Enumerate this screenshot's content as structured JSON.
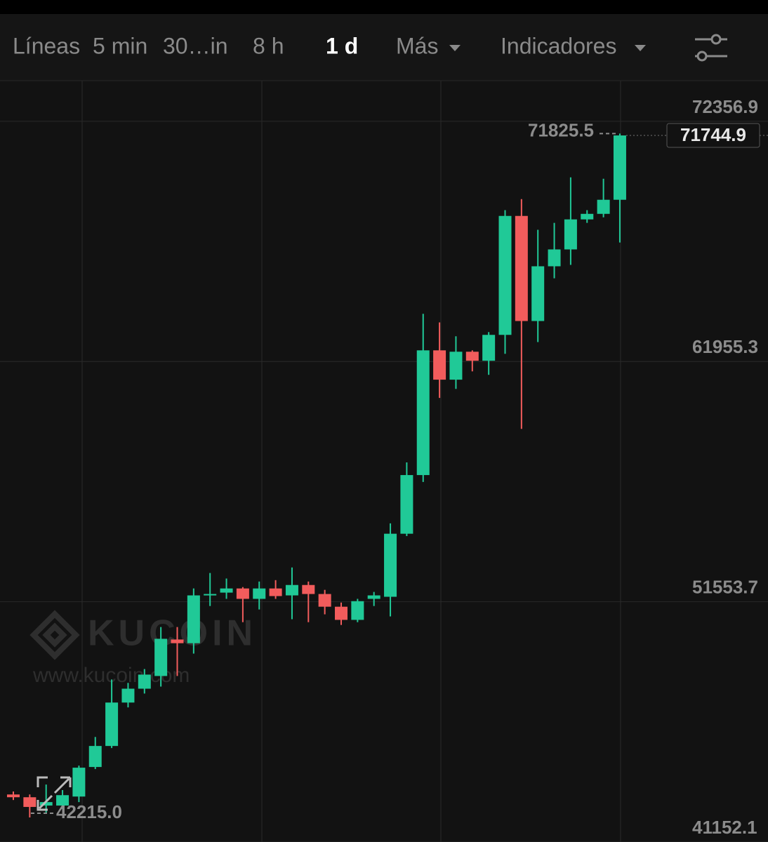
{
  "toolbar": {
    "tabs": [
      "Líneas",
      "5 min",
      "30…in",
      "8 h",
      "1 d",
      "Más",
      "Indicadores"
    ],
    "active": 4
  },
  "watermark": {
    "brand": "KUCOIN",
    "url": "www.kucoin.com"
  },
  "chart_data": {
    "type": "candlestick",
    "up_color": "#20c997",
    "down_color": "#f25c5c",
    "open": [
      43210,
      43090,
      42730,
      42730,
      43120,
      44400,
      45310,
      47190,
      47790,
      48340,
      49920,
      49760,
      51830,
      51950,
      52130,
      51680,
      52130,
      51830,
      52280,
      51890,
      51340,
      50770,
      51680,
      51770,
      54500,
      57040,
      62440,
      61170,
      62380,
      61990,
      63110,
      68260,
      63710,
      66080,
      66810,
      68110,
      68350,
      68960
    ],
    "high": [
      43340,
      43210,
      43640,
      43400,
      44460,
      45700,
      48190,
      48040,
      48640,
      50460,
      50460,
      52130,
      52800,
      52560,
      52190,
      52430,
      52490,
      53040,
      52430,
      52070,
      51520,
      51680,
      51980,
      54950,
      57590,
      64020,
      63650,
      63050,
      62440,
      63230,
      68510,
      68990,
      67660,
      67960,
      69930,
      68510,
      69870,
      71825.5
    ],
    "low": [
      42970,
      42215.0,
      42430,
      42580,
      42880,
      44310,
      45220,
      46980,
      47580,
      47880,
      48340,
      49310,
      51370,
      51680,
      50670,
      51220,
      51680,
      50800,
      50670,
      51010,
      50550,
      50670,
      51370,
      50920,
      54400,
      56740,
      60380,
      60770,
      61530,
      61380,
      62290,
      59040,
      62800,
      65560,
      66140,
      67960,
      68200,
      67110
    ],
    "close": [
      43090,
      42670,
      42880,
      43180,
      44370,
      45310,
      47190,
      47790,
      48400,
      49950,
      49760,
      51830,
      51890,
      52130,
      51680,
      52130,
      51800,
      52280,
      51890,
      51340,
      50770,
      51580,
      51830,
      54500,
      57040,
      62440,
      61170,
      62380,
      61990,
      63110,
      68260,
      63710,
      66080,
      66810,
      68110,
      68350,
      68960,
      71744.9
    ],
    "ylim": [
      41152.1,
      74115.7
    ],
    "yticks": [
      72356.9,
      61955.3,
      51553.7,
      41152.1
    ],
    "grid": true,
    "max_label": 71825.5,
    "min_label": {
      "value": 42215.0,
      "label": "42215.0"
    },
    "last_price": 71744.9
  }
}
